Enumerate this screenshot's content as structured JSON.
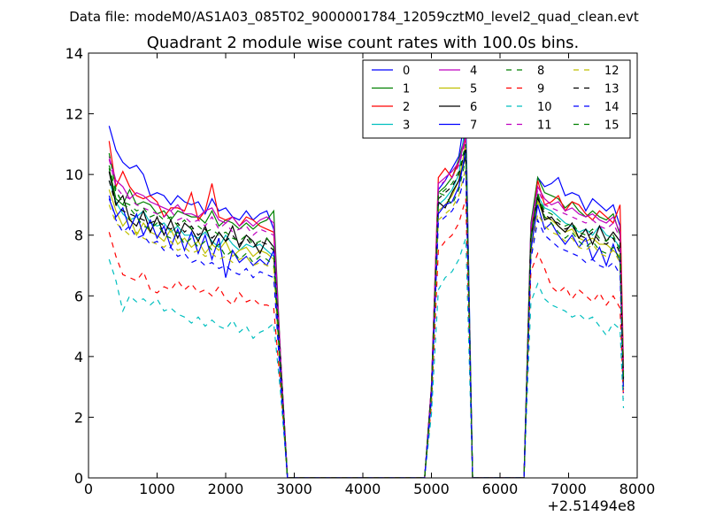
{
  "chart_data": {
    "type": "line",
    "supertitle": "Data file: modeM0/AS1A03_085T02_9000001784_12059cztM0_level2_quad_clean.evt",
    "title": "Quadrant 2 module wise count rates with 100.0s bins.",
    "xlabel": "",
    "ylabel": "",
    "x_offset_label": "+2.51494e8",
    "xlim": [
      0,
      8000
    ],
    "ylim": [
      0,
      14
    ],
    "x_ticks": [
      0,
      1000,
      2000,
      3000,
      4000,
      5000,
      6000,
      7000,
      8000
    ],
    "y_ticks": [
      0,
      2,
      4,
      6,
      8,
      10,
      12,
      14
    ],
    "legend_position": "top-right",
    "legend_columns": 4,
    "x": [
      300,
      400,
      500,
      600,
      700,
      800,
      900,
      1000,
      1100,
      1200,
      1300,
      1400,
      1500,
      1600,
      1700,
      1800,
      1900,
      2000,
      2100,
      2200,
      2300,
      2400,
      2500,
      2600,
      2700,
      2800,
      2900,
      3000,
      3500,
      4000,
      4500,
      4900,
      5000,
      5100,
      5200,
      5300,
      5400,
      5500,
      5600,
      6000,
      6350,
      6450,
      6550,
      6650,
      6750,
      6850,
      6950,
      7050,
      7150,
      7250,
      7350,
      7450,
      7550,
      7650,
      7750,
      7800
    ],
    "series": [
      {
        "name": "0",
        "color": "#0000ff",
        "dash": "solid",
        "values": [
          11.6,
          10.8,
          10.4,
          10.2,
          10.3,
          10.0,
          9.3,
          9.4,
          9.3,
          9.0,
          9.3,
          9.1,
          9.0,
          9.1,
          8.7,
          9.2,
          8.8,
          8.9,
          8.6,
          8.5,
          8.8,
          8.5,
          8.7,
          8.8,
          8.2,
          4.0,
          0,
          0,
          0,
          0,
          0,
          0,
          3.0,
          9.5,
          9.8,
          10.2,
          10.6,
          12.1,
          0,
          0,
          0,
          8.2,
          9.9,
          9.6,
          9.7,
          9.9,
          9.3,
          9.4,
          9.3,
          8.8,
          9.2,
          9.0,
          8.8,
          9.0,
          8.3,
          3.2
        ]
      },
      {
        "name": "1",
        "color": "#008000",
        "dash": "solid",
        "values": [
          10.2,
          9.2,
          9.0,
          9.5,
          9.0,
          9.1,
          9.0,
          8.7,
          8.8,
          8.5,
          8.8,
          8.7,
          8.6,
          8.6,
          8.4,
          8.8,
          8.3,
          8.5,
          8.4,
          8.2,
          8.4,
          8.2,
          8.4,
          8.5,
          8.8,
          4.0,
          0,
          0,
          0,
          0,
          0,
          0,
          3.0,
          9.4,
          9.6,
          9.9,
          10.5,
          11.4,
          0,
          0,
          0,
          8.4,
          9.9,
          9.4,
          9.3,
          9.2,
          8.9,
          9.1,
          8.8,
          8.6,
          8.8,
          8.6,
          8.5,
          8.7,
          8.0,
          3.5
        ]
      },
      {
        "name": "2",
        "color": "#ff0000",
        "dash": "solid",
        "values": [
          11.1,
          9.6,
          10.1,
          9.6,
          9.3,
          9.2,
          9.3,
          9.1,
          8.6,
          8.9,
          8.9,
          8.8,
          9.4,
          8.5,
          8.8,
          9.7,
          8.6,
          8.5,
          8.6,
          8.3,
          8.6,
          8.5,
          8.3,
          8.2,
          8.1,
          4.0,
          0,
          0,
          0,
          0,
          0,
          0,
          3.0,
          9.9,
          10.2,
          9.9,
          10.4,
          11.2,
          0,
          0,
          0,
          8.0,
          9.8,
          9.0,
          9.1,
          9.3,
          8.8,
          9.1,
          9.0,
          8.7,
          8.5,
          8.8,
          8.6,
          8.4,
          9.0,
          3.7
        ]
      },
      {
        "name": "3",
        "color": "#00bfbf",
        "dash": "solid",
        "values": [
          9.8,
          9.1,
          8.7,
          8.5,
          8.6,
          8.8,
          8.4,
          8.3,
          8.4,
          8.1,
          8.3,
          8.0,
          8.0,
          7.9,
          8.1,
          7.8,
          7.6,
          8.0,
          7.7,
          7.5,
          7.7,
          7.6,
          7.7,
          7.5,
          7.3,
          3.5,
          0,
          0,
          0,
          0,
          0,
          0,
          2.8,
          9.0,
          9.2,
          9.5,
          10.0,
          11.8,
          0,
          0,
          0,
          7.8,
          9.3,
          8.9,
          8.8,
          8.6,
          8.4,
          8.3,
          8.1,
          8.2,
          8.0,
          8.3,
          8.0,
          7.9,
          7.6,
          3.3
        ]
      },
      {
        "name": "4",
        "color": "#bf00bf",
        "dash": "solid",
        "values": [
          10.6,
          9.8,
          9.6,
          9.2,
          9.4,
          9.3,
          9.1,
          9.0,
          8.9,
          8.8,
          9.0,
          8.7,
          8.7,
          8.6,
          8.8,
          8.9,
          8.5,
          8.4,
          8.6,
          8.3,
          8.5,
          8.3,
          8.5,
          8.6,
          8.4,
          4.0,
          0,
          0,
          0,
          0,
          0,
          0,
          3.0,
          9.7,
          9.9,
          10.1,
          10.4,
          11.3,
          0,
          0,
          0,
          8.3,
          9.6,
          9.2,
          9.0,
          9.1,
          8.8,
          8.9,
          8.7,
          8.6,
          8.7,
          8.5,
          8.4,
          8.6,
          8.1,
          3.4
        ]
      },
      {
        "name": "5",
        "color": "#bfbf00",
        "dash": "solid",
        "values": [
          9.5,
          8.8,
          8.3,
          8.6,
          8.0,
          8.4,
          8.1,
          8.0,
          7.8,
          8.2,
          7.7,
          7.9,
          7.6,
          7.8,
          7.4,
          7.7,
          7.5,
          7.8,
          7.3,
          7.5,
          7.6,
          7.3,
          7.5,
          7.4,
          7.2,
          3.5,
          0,
          0,
          0,
          0,
          0,
          0,
          2.8,
          8.8,
          9.0,
          9.3,
          9.8,
          11.0,
          0,
          0,
          0,
          7.6,
          9.1,
          8.6,
          8.5,
          8.3,
          8.1,
          8.2,
          7.9,
          7.8,
          7.9,
          7.7,
          7.7,
          7.5,
          7.3,
          3.1
        ]
      },
      {
        "name": "6",
        "color": "#000000",
        "dash": "solid",
        "values": [
          10.1,
          9.0,
          9.3,
          8.5,
          8.3,
          8.8,
          8.1,
          8.6,
          8.0,
          8.5,
          7.9,
          8.4,
          8.2,
          7.8,
          8.3,
          7.7,
          8.1,
          7.8,
          8.3,
          7.6,
          8.0,
          7.8,
          7.4,
          7.9,
          7.6,
          3.8,
          0,
          0,
          0,
          0,
          0,
          0,
          2.9,
          9.1,
          8.9,
          9.4,
          9.8,
          10.6,
          0,
          0,
          0,
          7.9,
          9.3,
          8.5,
          8.6,
          8.3,
          8.1,
          8.4,
          7.9,
          8.2,
          7.7,
          8.3,
          7.8,
          8.1,
          7.8,
          3.0
        ]
      },
      {
        "name": "7",
        "color": "#0000ff",
        "dash": "solid",
        "values": [
          9.2,
          8.6,
          8.9,
          8.2,
          8.7,
          8.0,
          8.5,
          7.9,
          8.3,
          7.6,
          8.2,
          7.5,
          8.1,
          7.4,
          8.0,
          7.2,
          7.9,
          6.6,
          7.5,
          7.1,
          7.3,
          7.0,
          7.2,
          7.0,
          7.5,
          3.5,
          0,
          0,
          0,
          0,
          0,
          0,
          2.8,
          8.7,
          9.0,
          9.1,
          9.6,
          10.8,
          0,
          0,
          0,
          7.5,
          9.0,
          8.2,
          8.4,
          8.0,
          7.7,
          8.0,
          7.6,
          7.9,
          7.2,
          7.6,
          7.0,
          7.7,
          7.1,
          2.9
        ]
      },
      {
        "name": "8",
        "color": "#008000",
        "dash": "dashed",
        "values": [
          10.7,
          9.5,
          9.0,
          8.9,
          8.6,
          8.3,
          8.2,
          8.4,
          8.0,
          7.9,
          8.1,
          7.7,
          7.9,
          7.6,
          7.8,
          7.5,
          7.7,
          7.3,
          7.5,
          7.2,
          7.4,
          7.1,
          7.3,
          7.2,
          7.0,
          3.4,
          0,
          0,
          0,
          0,
          0,
          0,
          2.7,
          9.4,
          9.3,
          9.0,
          9.5,
          10.5,
          0,
          0,
          0,
          8.0,
          9.4,
          8.6,
          8.4,
          8.1,
          7.9,
          8.1,
          7.8,
          7.6,
          7.8,
          7.5,
          7.4,
          7.6,
          7.2,
          3.0
        ]
      },
      {
        "name": "9",
        "color": "#ff0000",
        "dash": "dashed",
        "values": [
          8.1,
          7.3,
          6.7,
          6.6,
          6.5,
          6.8,
          6.2,
          6.1,
          6.3,
          6.2,
          6.5,
          6.2,
          6.4,
          6.1,
          6.2,
          6.0,
          6.3,
          5.9,
          5.7,
          6.1,
          5.8,
          5.9,
          5.7,
          5.7,
          5.6,
          3.0,
          0,
          0,
          0,
          0,
          0,
          0,
          2.4,
          7.5,
          7.8,
          8.0,
          8.4,
          9.2,
          0,
          0,
          0,
          6.8,
          7.4,
          6.9,
          6.3,
          6.1,
          6.3,
          5.9,
          6.2,
          6.0,
          5.8,
          6.1,
          5.7,
          6.0,
          5.6,
          2.6
        ]
      },
      {
        "name": "10",
        "color": "#00bfbf",
        "dash": "dashed",
        "values": [
          7.2,
          6.5,
          5.5,
          6.0,
          5.8,
          5.9,
          5.7,
          5.9,
          5.5,
          5.6,
          5.4,
          5.3,
          5.1,
          5.3,
          5.0,
          5.2,
          5.0,
          4.9,
          5.2,
          4.8,
          5.0,
          4.6,
          4.8,
          4.9,
          5.1,
          2.8,
          0,
          0,
          0,
          0,
          0,
          0,
          2.1,
          6.2,
          6.6,
          6.8,
          7.2,
          7.9,
          0,
          0,
          0,
          5.8,
          6.4,
          5.9,
          5.7,
          5.6,
          5.5,
          5.3,
          5.4,
          5.2,
          5.3,
          5.0,
          4.7,
          5.1,
          4.9,
          2.3
        ]
      },
      {
        "name": "11",
        "color": "#bf00bf",
        "dash": "dashed",
        "values": [
          10.5,
          9.6,
          9.3,
          9.2,
          9.0,
          8.9,
          8.8,
          8.7,
          8.6,
          8.8,
          8.5,
          8.6,
          8.4,
          8.5,
          8.3,
          8.6,
          8.2,
          8.4,
          8.1,
          8.2,
          8.3,
          8.0,
          8.2,
          8.1,
          8.0,
          3.9,
          0,
          0,
          0,
          0,
          0,
          0,
          2.9,
          9.6,
          9.8,
          9.9,
          10.3,
          11.1,
          0,
          0,
          0,
          8.2,
          9.5,
          9.0,
          8.9,
          8.8,
          8.7,
          8.6,
          8.5,
          8.4,
          8.5,
          8.3,
          8.2,
          8.4,
          7.9,
          3.3
        ]
      },
      {
        "name": "12",
        "color": "#bfbf00",
        "dash": "dashed",
        "values": [
          9.0,
          8.4,
          8.2,
          8.0,
          8.1,
          7.9,
          7.8,
          7.7,
          7.6,
          7.8,
          7.5,
          7.6,
          7.4,
          7.5,
          7.3,
          7.4,
          7.2,
          7.3,
          7.1,
          7.2,
          7.3,
          7.0,
          7.1,
          7.0,
          6.9,
          3.4,
          0,
          0,
          0,
          0,
          0,
          0,
          2.6,
          8.5,
          8.7,
          8.9,
          9.3,
          10.2,
          0,
          0,
          0,
          7.3,
          8.7,
          8.3,
          8.1,
          8.0,
          7.8,
          7.9,
          7.6,
          7.5,
          7.7,
          7.4,
          7.3,
          7.5,
          7.1,
          2.9
        ]
      },
      {
        "name": "13",
        "color": "#000000",
        "dash": "dashed",
        "values": [
          9.8,
          9.0,
          8.8,
          8.7,
          8.6,
          8.5,
          8.4,
          8.5,
          8.3,
          8.2,
          8.4,
          8.1,
          8.3,
          8.0,
          8.2,
          7.9,
          8.1,
          7.8,
          8.0,
          7.7,
          7.9,
          7.6,
          7.8,
          7.7,
          7.5,
          3.6,
          0,
          0,
          0,
          0,
          0,
          0,
          2.8,
          9.2,
          9.4,
          9.6,
          10.0,
          10.9,
          0,
          0,
          0,
          7.9,
          9.2,
          8.7,
          8.5,
          8.4,
          8.2,
          8.3,
          8.0,
          7.9,
          8.1,
          7.8,
          7.7,
          7.9,
          7.4,
          3.1
        ]
      },
      {
        "name": "14",
        "color": "#0000ff",
        "dash": "dashed",
        "values": [
          9.3,
          8.5,
          8.1,
          8.3,
          7.9,
          8.0,
          7.7,
          7.8,
          7.5,
          7.6,
          7.3,
          7.4,
          7.1,
          7.2,
          7.0,
          7.1,
          6.9,
          7.0,
          6.8,
          6.7,
          6.9,
          6.6,
          6.8,
          6.7,
          6.6,
          3.2,
          0,
          0,
          0,
          0,
          0,
          0,
          2.6,
          8.4,
          8.6,
          8.8,
          9.2,
          10.1,
          0,
          0,
          0,
          7.2,
          8.5,
          8.0,
          7.8,
          7.6,
          7.5,
          7.4,
          7.3,
          7.1,
          7.2,
          7.0,
          6.9,
          7.1,
          6.7,
          2.8
        ]
      },
      {
        "name": "15",
        "color": "#008000",
        "dash": "dashed",
        "values": [
          10.3,
          9.4,
          9.1,
          9.0,
          8.8,
          8.9,
          8.6,
          8.7,
          8.5,
          8.6,
          8.3,
          8.5,
          8.2,
          8.3,
          8.1,
          8.2,
          8.0,
          8.1,
          7.9,
          7.8,
          8.0,
          7.7,
          7.8,
          7.9,
          7.6,
          3.7,
          0,
          0,
          0,
          0,
          0,
          0,
          2.8,
          9.3,
          9.5,
          9.7,
          10.1,
          11.0,
          0,
          0,
          0,
          8.0,
          9.3,
          8.8,
          8.7,
          8.5,
          8.3,
          8.4,
          8.1,
          8.0,
          8.2,
          7.9,
          7.8,
          8.0,
          7.5,
          3.2
        ]
      }
    ]
  }
}
